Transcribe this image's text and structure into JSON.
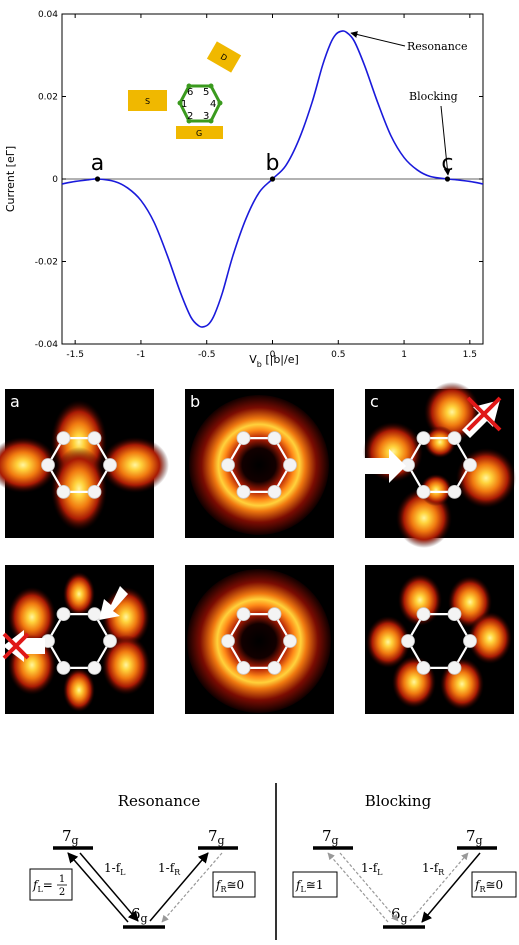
{
  "chart_data": {
    "type": "line",
    "title": "",
    "xlabel": "V",
    "xlabel_sub": "b",
    "xlabel_units": " [|b|/e]",
    "ylabel": "Current [eΓ]",
    "xlim": [
      -1.6,
      1.6
    ],
    "ylim": [
      -0.04,
      0.04
    ],
    "x_ticks": [
      -1.5,
      -1,
      -0.5,
      0,
      0.5,
      1,
      1.5
    ],
    "x_tick_labels": [
      "-1.5",
      "-1",
      "-0.5",
      "0",
      "0.5",
      "1",
      "1.5"
    ],
    "y_ticks": [
      -0.04,
      -0.02,
      0,
      0.02,
      0.04
    ],
    "y_tick_labels": [
      "-0.04",
      "-0.02",
      "0",
      "0.02",
      "0.04"
    ],
    "grid": false,
    "line_color": "#1a1adb",
    "series": [
      {
        "x": [
          -1.6,
          -1.5,
          -1.4,
          -1.33,
          -1.2,
          -1.1,
          -1.0,
          -0.9,
          -0.8,
          -0.7,
          -0.62,
          -0.56,
          -0.52,
          -0.48,
          -0.44,
          -0.38,
          -0.3,
          -0.2,
          -0.1,
          0.0,
          0.1,
          0.2,
          0.3,
          0.38,
          0.44,
          0.48,
          0.52,
          0.56,
          0.62,
          0.7,
          0.8,
          0.9,
          1.0,
          1.1,
          1.2,
          1.33,
          1.4,
          1.5,
          1.6
        ],
        "y": [
          -0.0012,
          -0.0006,
          -0.0002,
          0.0,
          -0.0006,
          -0.0022,
          -0.0052,
          -0.0105,
          -0.0185,
          -0.0275,
          -0.0335,
          -0.0356,
          -0.0358,
          -0.035,
          -0.0328,
          -0.0275,
          -0.0185,
          -0.0095,
          -0.0032,
          0.0,
          0.0032,
          0.0095,
          0.0185,
          0.0275,
          0.0328,
          0.035,
          0.0358,
          0.0356,
          0.0335,
          0.0275,
          0.0185,
          0.0105,
          0.0052,
          0.0022,
          0.0006,
          0.0,
          -0.0002,
          -0.0006,
          -0.0012
        ]
      }
    ],
    "points": [
      {
        "label": "a",
        "x": -1.33,
        "y": 0.0
      },
      {
        "label": "b",
        "x": 0.0,
        "y": 0.0
      },
      {
        "label": "c",
        "x": 1.33,
        "y": 0.0
      }
    ],
    "annotations": [
      {
        "text": "Resonance",
        "x": 0.52,
        "y": 0.0358
      },
      {
        "text": "Blocking",
        "x": 1.33,
        "y": 0.0
      }
    ]
  },
  "inset": {
    "source_label": "S",
    "drain_label": "D",
    "gate_label": "G",
    "site_labels": [
      "6",
      "5",
      "1",
      "4",
      "2",
      "3"
    ],
    "box_color": "#f0b800",
    "ring_color": "#3a9a1e"
  },
  "panels": {
    "labels": [
      "a",
      "b",
      "c"
    ],
    "hot_color": "#ffd23c"
  },
  "diagram": {
    "left": {
      "title": "Resonance",
      "top_left": "7",
      "top_right": "7",
      "bottom": "6",
      "sub": "g",
      "f_left": "f",
      "f_left_sub": "L",
      "f_left_eq": "=",
      "f_left_num": "1",
      "f_left_den": "2",
      "f_right": "f",
      "f_right_sub": "R",
      "f_right_eq": "≅0",
      "arrow_left": "1-f",
      "arrow_left_sub": "L",
      "arrow_right": "1-f",
      "arrow_right_sub": "R"
    },
    "right": {
      "title": "Blocking",
      "top_left": "7",
      "top_right": "7",
      "bottom": "6",
      "sub": "g",
      "f_left": "f",
      "f_left_sub": "L",
      "f_left_eq": "≅1",
      "f_right": "f",
      "f_right_sub": "R",
      "f_right_eq": "≅0",
      "arrow_left": "1-f",
      "arrow_left_sub": "L",
      "arrow_right": "1-f",
      "arrow_right_sub": "R"
    }
  }
}
